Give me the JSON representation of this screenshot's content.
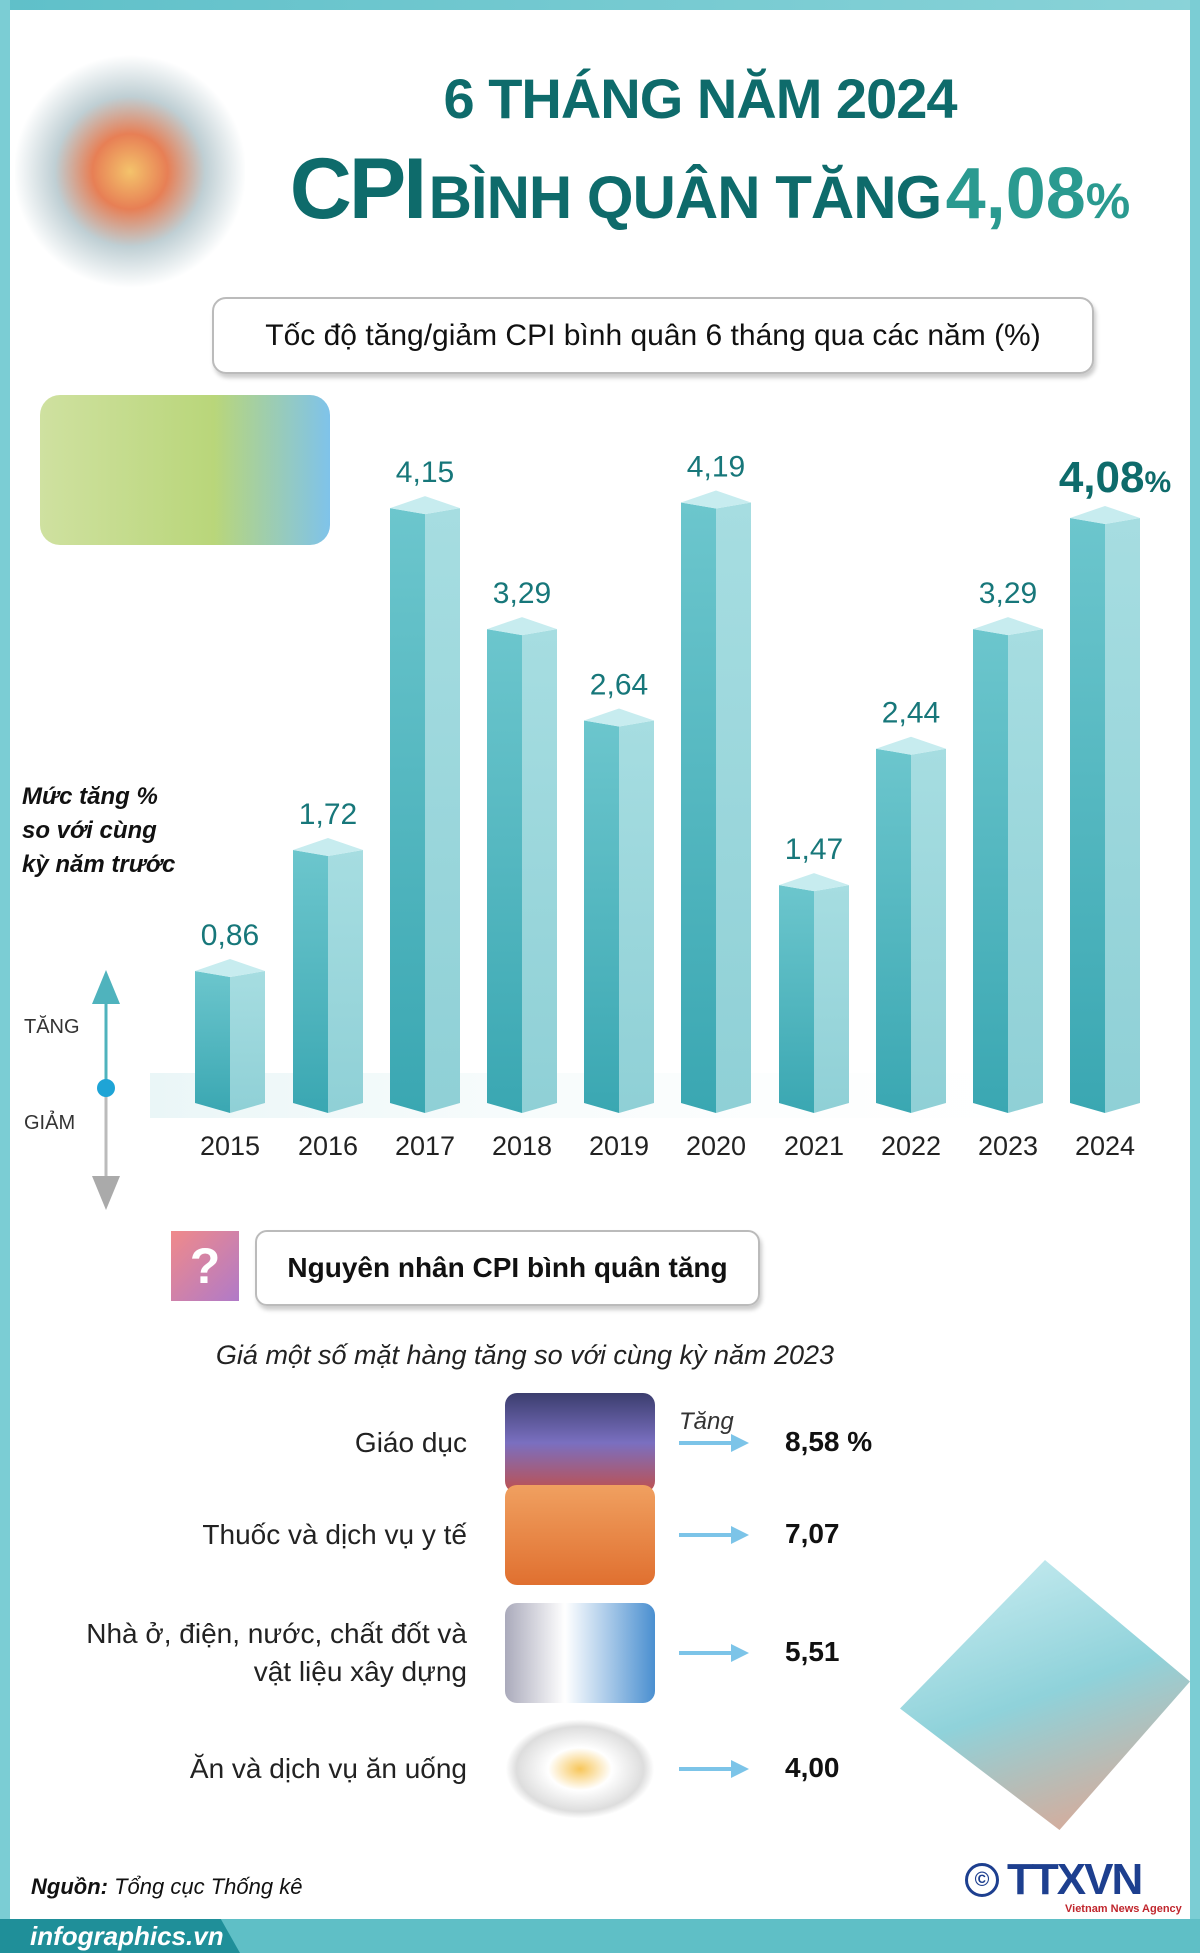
{
  "header": {
    "line1": "6 THÁNG NĂM 2024",
    "cpi": "CPI",
    "mid": "BÌNH QUÂN TĂNG",
    "value": "4,08",
    "pct": "%"
  },
  "chart_subtitle": "Tốc độ tăng/giảm CPI bình quân 6 tháng qua các năm (%)",
  "chart_data": {
    "type": "bar",
    "title": "Tốc độ tăng/giảm CPI bình quân 6 tháng qua các năm (%)",
    "ylabel": "Mức tăng % so với cùng kỳ năm trước",
    "categories": [
      "2015",
      "2016",
      "2017",
      "2018",
      "2019",
      "2020",
      "2021",
      "2022",
      "2023",
      "2024"
    ],
    "values": [
      0.86,
      1.72,
      4.15,
      3.29,
      2.64,
      4.19,
      1.47,
      2.44,
      3.29,
      4.08
    ],
    "labels": [
      "0,86",
      "1,72",
      "4,15",
      "3,29",
      "2,64",
      "4,19",
      "1,47",
      "2,44",
      "3,29",
      "4,08"
    ],
    "highlight_suffix": "%",
    "ylim": [
      0,
      4.5
    ],
    "bar_color": "#6cc6cd",
    "grid": false
  },
  "axis_legend": {
    "label": "Mức tăng % so với cùng kỳ năm trước",
    "up": "TĂNG",
    "down": "GIẢM"
  },
  "reasons": {
    "title": "Nguyên nhân CPI bình quân tăng",
    "subtitle": "Giá một số mặt hàng tăng so với cùng kỳ năm 2023",
    "increase_label": "Tăng",
    "items": [
      {
        "label": "Giáo dục",
        "value": "8,58 %",
        "icon": "graduation-cap-books-icon"
      },
      {
        "label": "Thuốc và dịch vụ y tế",
        "value": "7,07",
        "icon": "medicine-bottle-icon"
      },
      {
        "label": "Nhà ở, điện, nước, chất đốt và vật liệu xây dựng",
        "value": "5,51",
        "icon": "faucet-socket-icon"
      },
      {
        "label": "Ăn và dịch vụ ăn uống",
        "value": "4,00",
        "icon": "food-plate-icon"
      }
    ]
  },
  "footer": {
    "source_label": "Nguồn:",
    "source": "Tổng cục Thống kê",
    "site": "infographics.vn",
    "logo": "TTXVN",
    "logo_sub": "Vietnam News Agency",
    "copyright": "©"
  },
  "colors": {
    "title": "#0e6b6b",
    "accent": "#2a9a90",
    "bar": "#6cc6cd",
    "frame": "#7bcdd4",
    "logo": "#1d3f8f"
  }
}
